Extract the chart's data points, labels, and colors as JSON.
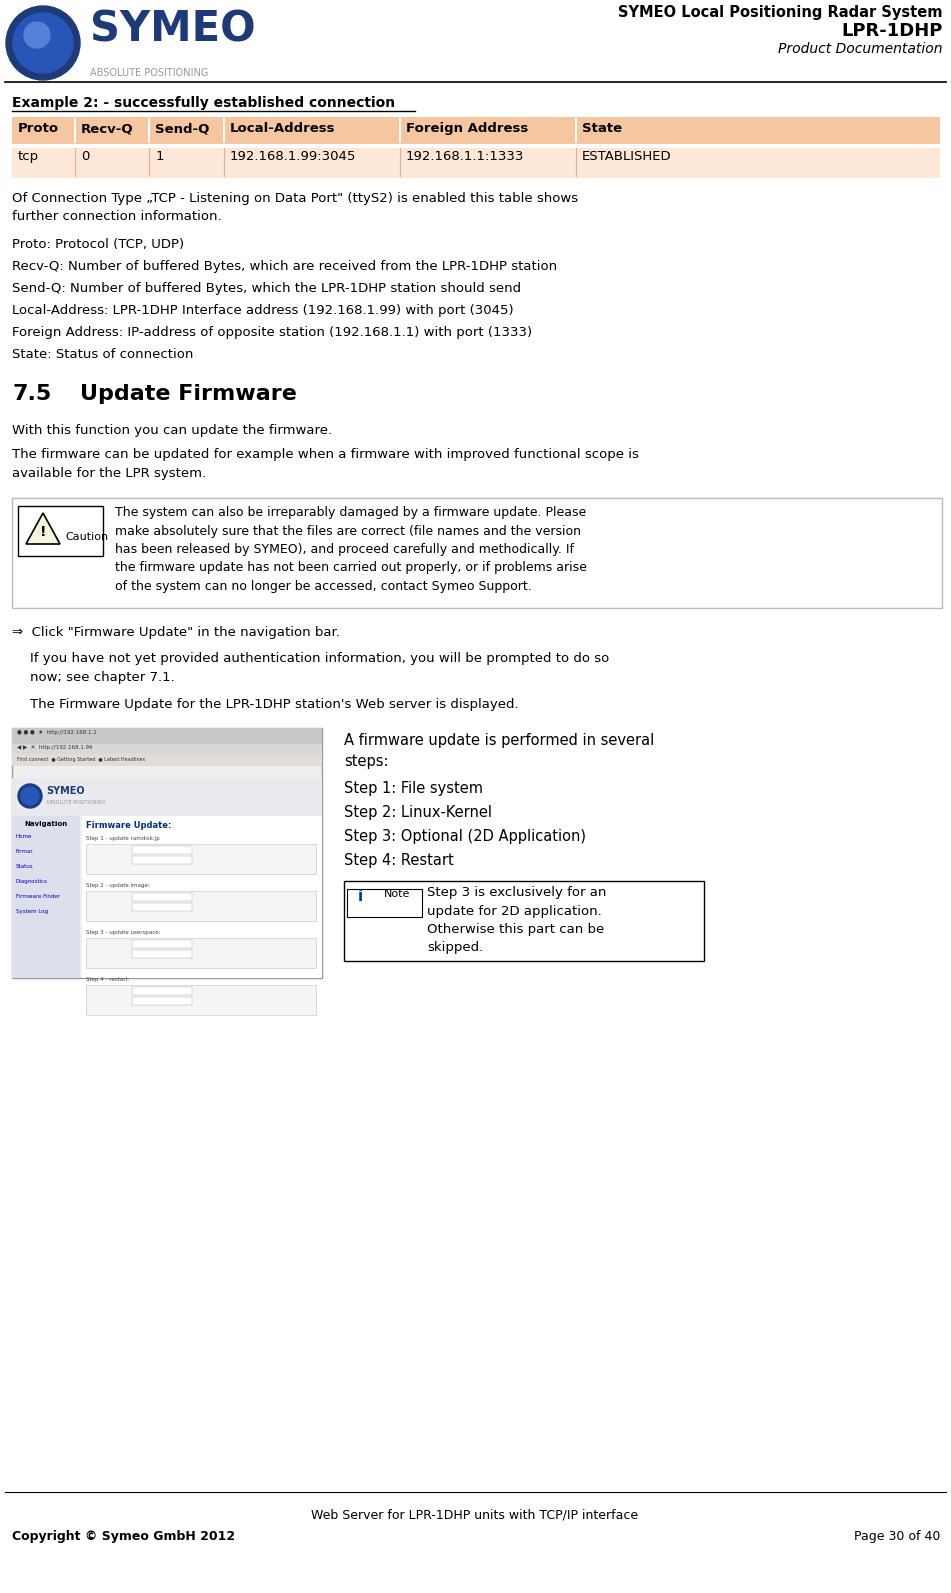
{
  "page_width": 9.51,
  "page_height": 15.93,
  "bg_color": "#ffffff",
  "header": {
    "logo_text": "SYMEO",
    "logo_sub": "ABSOLUTE POSITIONING",
    "title_line1": "SYMEO Local Positioning Radar System",
    "title_line2": "LPR-1DHP",
    "title_line3": "Product Documentation"
  },
  "footer": {
    "center_text": "Web Server for LPR-1DHP units with TCP/IP interface",
    "left_text": "Copyright © Symeo GmbH 2012",
    "right_text": "Page 30 of 40"
  },
  "section_title": "Example 2: - successfully established connection",
  "table_header_bg": "#f5c6a0",
  "table_row_bg": "#fde8d8",
  "table_headers": [
    "Proto",
    "Recv-Q",
    "Send-Q",
    "Local-Address",
    "Foreign Address",
    "State"
  ],
  "table_row": [
    "tcp",
    "0",
    "1",
    "192.168.1.99:3045",
    "192.168.1.1:1333",
    "ESTABLISHED"
  ],
  "description_text": "Of Connection Type „TCP - Listening on Data Port\" (ttyS2) is enabled this table shows\nfurther connection information.",
  "bullet_items": [
    "Proto: Protocol (TCP, UDP)",
    "Recv-Q: Number of buffered Bytes, which are received from the LPR-1DHP station",
    "Send-Q: Number of buffered Bytes, which the LPR-1DHP station should send",
    "Local-Address: LPR-1DHP Interface address (192.168.1.99) with port (3045)",
    "Foreign Address: IP-address of opposite station (192.168.1.1) with port (1333)",
    "State: Status of connection"
  ],
  "section75_num": "7.5",
  "section75_name": "Update Firmware",
  "section75_intro": "With this function you can update the firmware.",
  "section75_body": "The firmware can be updated for example when a firmware with improved functional scope is\navailable for the LPR system.",
  "caution_text": "The system can also be irreparably damaged by a firmware update. Please\nmake absolutely sure that the files are correct (file names and the version\nhas been released by SYMEO), and proceed carefully and methodically. If\nthe firmware update has not been carried out properly, or if problems arise\nof the system can no longer be accessed, contact Symeo Support.",
  "arrow_click": "⇒  Click \"Firmware Update\" in the navigation bar.",
  "para_auth": "If you have not yet provided authentication information, you will be prompted to do so\nnow; see chapter 7.1.",
  "para_display": "The Firmware Update for the LPR-1DHP station's Web server is displayed.",
  "steps_intro": "A firmware update is performed in several\nsteps:",
  "steps": [
    "Step 1: File system",
    "Step 2: Linux-Kernel",
    "Step 3: Optional (2D Application)",
    "Step 4: Restart"
  ],
  "note_text": "Step 3 is exclusively for an\nupdate for 2D application.\nOtherwise this part can be\nskipped."
}
